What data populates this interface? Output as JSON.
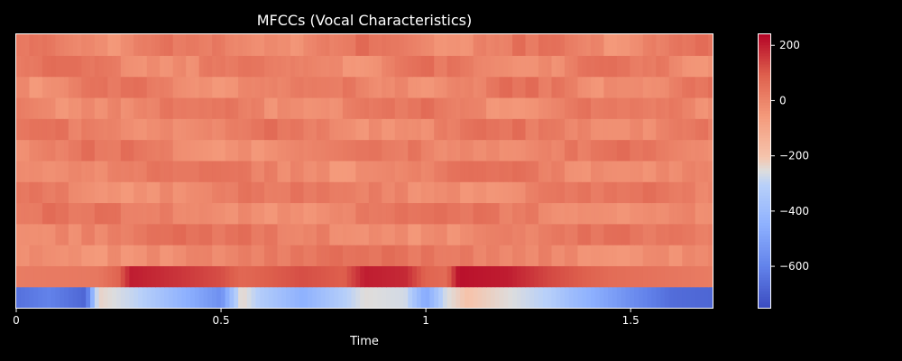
{
  "chart_data": {
    "type": "heatmap",
    "title": "MFCCs (Vocal Characteristics)",
    "xlabel": "Time",
    "ylabel": "",
    "xlim": [
      0,
      1.7
    ],
    "x_ticks": [
      {
        "value": 0,
        "label": "0"
      },
      {
        "value": 0.5,
        "label": "0.5"
      },
      {
        "value": 1,
        "label": "1"
      },
      {
        "value": 1.5,
        "label": "1.5"
      }
    ],
    "n_coefficients": 13,
    "colormap": "coolwarm",
    "colorbar": {
      "range": [
        -750,
        240
      ],
      "ticks": [
        {
          "value": 200,
          "label": "200"
        },
        {
          "value": 0,
          "label": "0"
        },
        {
          "value": -200,
          "label": "−200"
        },
        {
          "value": -400,
          "label": "−400"
        },
        {
          "value": -600,
          "label": "−600"
        }
      ]
    },
    "c0_profile": {
      "description_of_series": "coefficient 0 (bottom row) over time",
      "time": [
        0,
        0.08,
        0.17,
        0.2,
        0.3,
        0.4,
        0.5,
        0.55,
        0.6,
        0.7,
        0.85,
        0.95,
        1.0,
        1.05,
        1.1,
        1.2,
        1.3,
        1.35,
        1.5,
        1.6,
        1.7
      ],
      "values": [
        -650,
        -600,
        -680,
        -230,
        -300,
        -430,
        -560,
        -230,
        -330,
        -450,
        -250,
        -270,
        -480,
        -260,
        -200,
        -250,
        -310,
        -390,
        -560,
        -660,
        -680
      ]
    },
    "c1_profile": {
      "time": [
        0,
        0.2,
        0.25,
        0.28,
        0.4,
        0.5,
        0.55,
        0.7,
        0.8,
        0.85,
        0.95,
        1.0,
        1.05,
        1.08,
        1.2,
        1.3,
        1.45,
        1.7
      ],
      "values": [
        20,
        30,
        80,
        200,
        160,
        120,
        70,
        120,
        90,
        200,
        180,
        80,
        60,
        220,
        200,
        130,
        60,
        20
      ]
    },
    "upper_rows_range": [
      -60,
      70
    ]
  }
}
